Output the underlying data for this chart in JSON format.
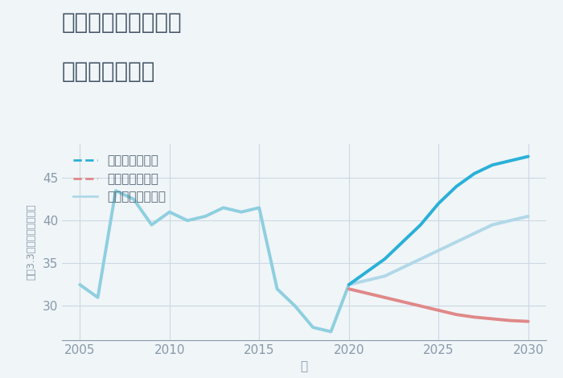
{
  "title_line1": "兵庫県姫路市兼田の",
  "title_line2": "土地の価格推移",
  "xlabel": "年",
  "ylabel": "平（3.3㎡）単価（万円）",
  "background_color": "#f0f5f8",
  "plot_background": "#f0f5f8",
  "historical_years": [
    2005,
    2006,
    2007,
    2008,
    2009,
    2010,
    2011,
    2012,
    2013,
    2014,
    2015,
    2016,
    2017,
    2018,
    2019,
    2020
  ],
  "historical_values": [
    32.5,
    31.0,
    43.5,
    42.5,
    39.5,
    41.0,
    40.0,
    40.5,
    41.5,
    41.0,
    41.5,
    32.0,
    30.0,
    27.5,
    27.0,
    32.5
  ],
  "good_years": [
    2020,
    2021,
    2022,
    2023,
    2024,
    2025,
    2026,
    2027,
    2028,
    2029,
    2030
  ],
  "good_values": [
    32.5,
    34.0,
    35.5,
    37.5,
    39.5,
    42.0,
    44.0,
    45.5,
    46.5,
    47.0,
    47.5
  ],
  "bad_years": [
    2020,
    2021,
    2022,
    2023,
    2024,
    2025,
    2026,
    2027,
    2028,
    2029,
    2030
  ],
  "bad_values": [
    32.0,
    31.5,
    31.0,
    30.5,
    30.0,
    29.5,
    29.0,
    28.7,
    28.5,
    28.3,
    28.2
  ],
  "normal_years": [
    2020,
    2021,
    2022,
    2023,
    2024,
    2025,
    2026,
    2027,
    2028,
    2029,
    2030
  ],
  "normal_values": [
    32.5,
    33.0,
    33.5,
    34.5,
    35.5,
    36.5,
    37.5,
    38.5,
    39.5,
    40.0,
    40.5
  ],
  "historical_color": "#8ecfdf",
  "good_color": "#2ab0d8",
  "bad_color": "#e08888",
  "normal_color": "#b0d8e8",
  "grid_color": "#ccd8e4",
  "axis_color": "#8899aa",
  "text_color": "#556677",
  "title_color": "#445566",
  "legend_labels": [
    "グッドシナリオ",
    "バッドシナリオ",
    "ノーマルシナリオ"
  ],
  "legend_colors": [
    "#2ab0d8",
    "#e08888",
    "#b0d8e8"
  ],
  "ylim": [
    26,
    49
  ],
  "yticks": [
    30,
    35,
    40,
    45
  ],
  "xticks": [
    2005,
    2010,
    2015,
    2020,
    2025,
    2030
  ],
  "linewidth_hist": 2.8,
  "linewidth_future": 2.8,
  "title_fontsize": 20,
  "axis_label_fontsize": 11,
  "tick_fontsize": 11,
  "legend_fontsize": 11
}
